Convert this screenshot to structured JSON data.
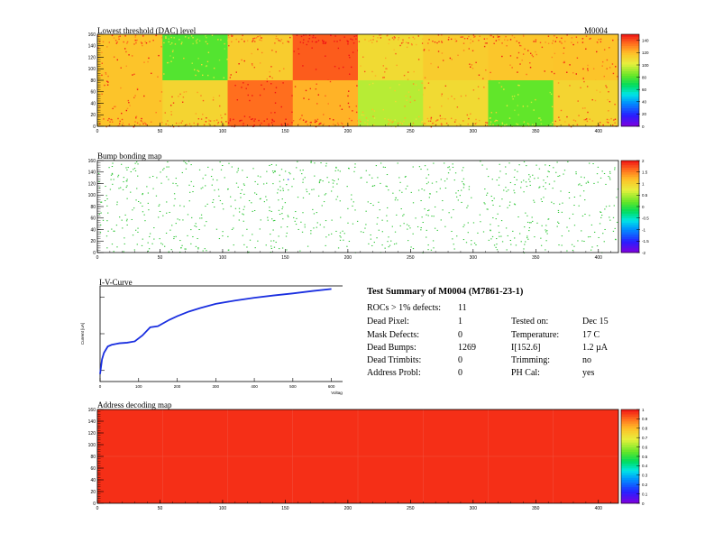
{
  "module_label": "M0004",
  "chart_data": [
    {
      "type": "heatmap",
      "title": "Lowest threshold (DAC) level",
      "x_ticks": [
        "0",
        "50",
        "100",
        "150",
        "200",
        "250",
        "300",
        "350",
        "400"
      ],
      "y_ticks": [
        "0",
        "20",
        "40",
        "60",
        "80",
        "100",
        "120",
        "140",
        "160"
      ],
      "xlim": [
        0,
        416
      ],
      "ylim": [
        0,
        160
      ],
      "zlim": [
        0,
        150
      ],
      "z_ticks": [
        "0",
        "20",
        "40",
        "60",
        "80",
        "100",
        "120",
        "140"
      ],
      "roc_grid": {
        "cols": 8,
        "rows": 2,
        "col_width": 52,
        "row_height": 80
      },
      "roc_mean_values": {
        "top": [
          118,
          80,
          115,
          138,
          110,
          115,
          117,
          118
        ],
        "bottom": [
          118,
          112,
          135,
          122,
          95,
          110,
          82,
          112
        ]
      }
    },
    {
      "type": "heatmap",
      "title": "Bump bonding map",
      "x_ticks": [
        "0",
        "50",
        "100",
        "150",
        "200",
        "250",
        "300",
        "350",
        "400"
      ],
      "y_ticks": [
        "0",
        "20",
        "40",
        "60",
        "80",
        "100",
        "120",
        "140",
        "160"
      ],
      "xlim": [
        0,
        416
      ],
      "ylim": [
        0,
        160
      ],
      "z_ticks": [
        "-2",
        "-1.5",
        "-1",
        "-0.5",
        "0",
        "0.5",
        "1",
        "1.5",
        "2"
      ],
      "defect_count": 1269
    },
    {
      "type": "line",
      "title": "I-V-Curve",
      "xlabel": "Voltage [V]",
      "ylabel": "Current [uA]",
      "y_scale": "log",
      "x_ticks": [
        "0",
        "100",
        "200",
        "300",
        "400",
        "500",
        "600"
      ],
      "xlim": [
        0,
        650
      ],
      "ylim": [
        0.05,
        20
      ],
      "series": [
        {
          "x": [
            0,
            5,
            10,
            20,
            30,
            50,
            70,
            90,
            110,
            130,
            150,
            180,
            200,
            230,
            260,
            300,
            350,
            400,
            450,
            500,
            550,
            600
          ],
          "y": [
            0.08,
            0.2,
            0.3,
            0.45,
            0.5,
            0.55,
            0.57,
            0.62,
            0.9,
            1.5,
            1.6,
            2.4,
            3.0,
            4.0,
            5.0,
            6.5,
            8.0,
            9.5,
            11.0,
            12.5,
            14.5,
            16.5
          ]
        }
      ]
    },
    {
      "type": "heatmap",
      "title": "Address decoding map",
      "x_ticks": [
        "0",
        "50",
        "100",
        "150",
        "200",
        "250",
        "300",
        "350",
        "400"
      ],
      "y_ticks": [
        "0",
        "20",
        "40",
        "60",
        "80",
        "100",
        "120",
        "140",
        "160"
      ],
      "xlim": [
        0,
        416
      ],
      "ylim": [
        0,
        160
      ],
      "z_ticks": [
        "0",
        "0.1",
        "0.2",
        "0.3",
        "0.4",
        "0.5",
        "0.6",
        "0.7",
        "0.8",
        "0.9",
        "1"
      ],
      "uniform_value": 1
    }
  ],
  "summary": {
    "title": "Test Summary of M0004 (M7861-23-1)",
    "rocs_label": "ROCs > 1% defects:",
    "rocs_value": "11",
    "left": [
      {
        "label": "Dead Pixel:",
        "value": "1"
      },
      {
        "label": "Mask Defects:",
        "value": "0"
      },
      {
        "label": "Dead Bumps:",
        "value": "1269"
      },
      {
        "label": "Dead Trimbits:",
        "value": "0"
      },
      {
        "label": "Address Probl:",
        "value": "0"
      }
    ],
    "right": [
      {
        "label": "Tested on:",
        "value": "Dec 15"
      },
      {
        "label": "Temperature:",
        "value": "17 C"
      },
      {
        "label": "I[152.6]",
        "value": "1.2 µA"
      },
      {
        "label": "Trimming:",
        "value": "no"
      },
      {
        "label": "PH Cal:",
        "value": "yes"
      }
    ]
  }
}
